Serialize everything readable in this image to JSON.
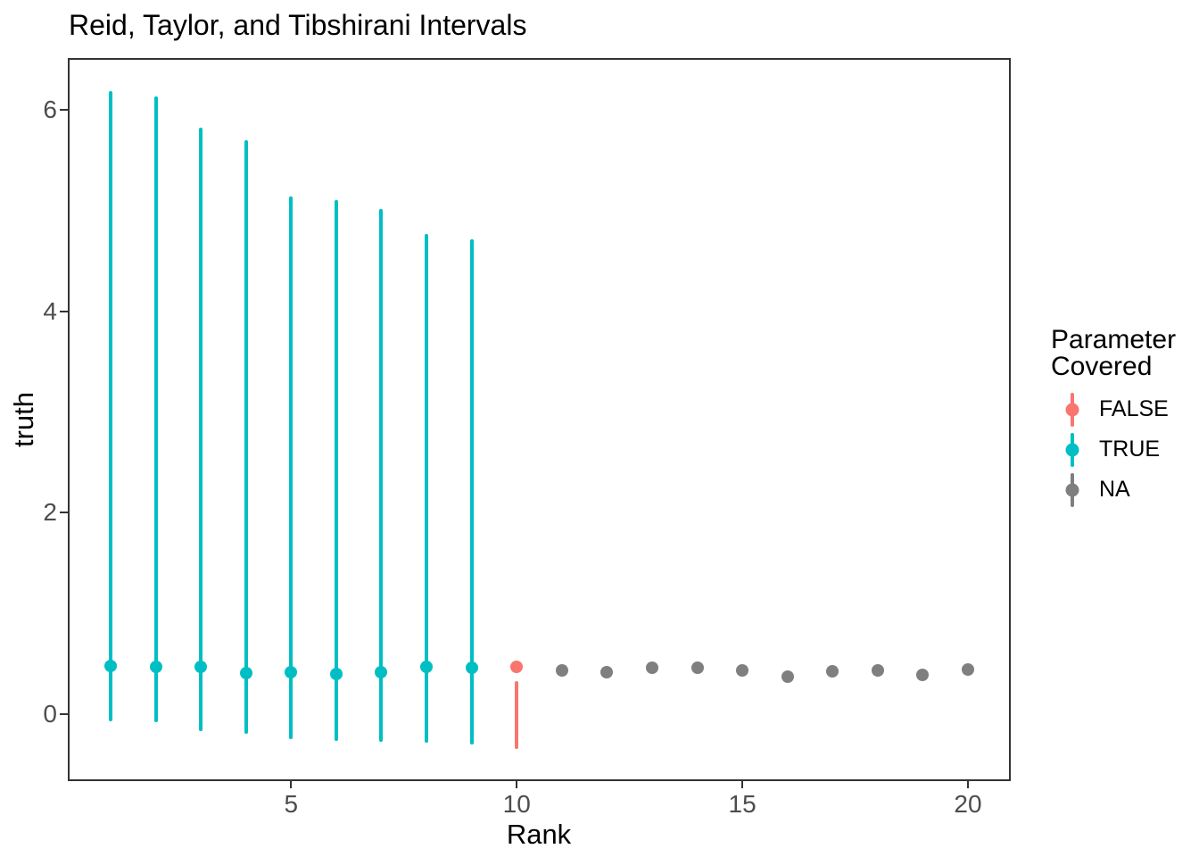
{
  "title": "Reid, Taylor, and Tibshirani Intervals",
  "axes": {
    "x_label": "Rank",
    "y_label": "truth"
  },
  "legend": {
    "title_lines": [
      "Parameter",
      "Covered"
    ],
    "entries": [
      {
        "label": "FALSE",
        "color": "#F8766D"
      },
      {
        "label": "TRUE",
        "color": "#00BFC4"
      },
      {
        "label": "NA",
        "color": "#7F7F7F"
      }
    ]
  },
  "colors": {
    "covered_true": "#00BFC4",
    "covered_false": "#F8766D",
    "covered_na": "#7F7F7F",
    "axis_text": "#4d4d4d",
    "panel_border": "#333333"
  },
  "chart_data": {
    "type": "scatter",
    "subtype": "pointrange",
    "title": "Reid, Taylor, and Tibshirani Intervals",
    "xlabel": "Rank",
    "ylabel": "truth",
    "legend_title": "Parameter Covered",
    "legend_position": "right",
    "grid": false,
    "x_ticks": [
      5,
      10,
      15,
      20
    ],
    "y_ticks": [
      0,
      2,
      4,
      6
    ],
    "xlim": [
      0.05,
      20.95
    ],
    "ylim": [
      -0.66,
      6.51
    ],
    "points": [
      {
        "rank": 1,
        "truth": 0.48,
        "lower": -0.07,
        "upper": 6.18,
        "covered": "TRUE"
      },
      {
        "rank": 2,
        "truth": 0.47,
        "lower": -0.08,
        "upper": 6.13,
        "covered": "TRUE"
      },
      {
        "rank": 3,
        "truth": 0.47,
        "lower": -0.16,
        "upper": 5.82,
        "covered": "TRUE"
      },
      {
        "rank": 4,
        "truth": 0.41,
        "lower": -0.19,
        "upper": 5.7,
        "covered": "TRUE"
      },
      {
        "rank": 5,
        "truth": 0.42,
        "lower": -0.24,
        "upper": 5.14,
        "covered": "TRUE"
      },
      {
        "rank": 6,
        "truth": 0.4,
        "lower": -0.26,
        "upper": 5.1,
        "covered": "TRUE"
      },
      {
        "rank": 7,
        "truth": 0.42,
        "lower": -0.27,
        "upper": 5.01,
        "covered": "TRUE"
      },
      {
        "rank": 8,
        "truth": 0.47,
        "lower": -0.28,
        "upper": 4.77,
        "covered": "TRUE"
      },
      {
        "rank": 9,
        "truth": 0.46,
        "lower": -0.3,
        "upper": 4.71,
        "covered": "TRUE"
      },
      {
        "rank": 10,
        "truth": 0.47,
        "lower": -0.34,
        "upper": 0.33,
        "covered": "FALSE"
      },
      {
        "rank": 11,
        "truth": 0.44,
        "lower": null,
        "upper": null,
        "covered": "NA"
      },
      {
        "rank": 12,
        "truth": 0.42,
        "lower": null,
        "upper": null,
        "covered": "NA"
      },
      {
        "rank": 13,
        "truth": 0.46,
        "lower": null,
        "upper": null,
        "covered": "NA"
      },
      {
        "rank": 14,
        "truth": 0.46,
        "lower": null,
        "upper": null,
        "covered": "NA"
      },
      {
        "rank": 15,
        "truth": 0.44,
        "lower": null,
        "upper": null,
        "covered": "NA"
      },
      {
        "rank": 16,
        "truth": 0.38,
        "lower": null,
        "upper": null,
        "covered": "NA"
      },
      {
        "rank": 17,
        "truth": 0.43,
        "lower": null,
        "upper": null,
        "covered": "NA"
      },
      {
        "rank": 18,
        "truth": 0.44,
        "lower": null,
        "upper": null,
        "covered": "NA"
      },
      {
        "rank": 19,
        "truth": 0.39,
        "lower": null,
        "upper": null,
        "covered": "NA"
      },
      {
        "rank": 20,
        "truth": 0.45,
        "lower": null,
        "upper": null,
        "covered": "NA"
      }
    ]
  }
}
